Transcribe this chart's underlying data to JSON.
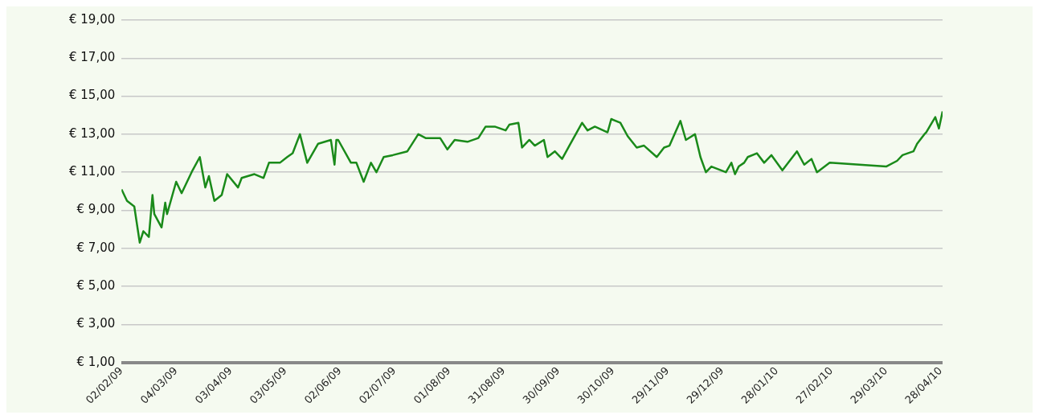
{
  "chart_data": {
    "type": "line",
    "x": [
      "2009-02-02",
      "2009-02-05",
      "2009-02-09",
      "2009-02-12",
      "2009-02-14",
      "2009-02-17",
      "2009-02-19",
      "2009-02-20",
      "2009-02-24",
      "2009-02-26",
      "2009-02-27",
      "2009-03-04",
      "2009-03-07",
      "2009-03-13",
      "2009-03-17",
      "2009-03-20",
      "2009-03-22",
      "2009-03-25",
      "2009-03-29",
      "2009-04-01",
      "2009-04-07",
      "2009-04-09",
      "2009-04-16",
      "2009-04-21",
      "2009-04-24",
      "2009-04-30",
      "2009-05-04",
      "2009-05-07",
      "2009-05-11",
      "2009-05-15",
      "2009-05-21",
      "2009-05-28",
      "2009-05-30",
      "2009-05-31",
      "2009-06-01",
      "2009-06-08",
      "2009-06-11",
      "2009-06-15",
      "2009-06-19",
      "2009-06-22",
      "2009-06-26",
      "2009-07-01",
      "2009-07-09",
      "2009-07-15",
      "2009-07-19",
      "2009-07-27",
      "2009-07-31",
      "2009-08-04",
      "2009-08-11",
      "2009-08-17",
      "2009-08-21",
      "2009-08-26",
      "2009-09-01",
      "2009-09-03",
      "2009-09-08",
      "2009-09-10",
      "2009-09-14",
      "2009-09-17",
      "2009-09-22",
      "2009-09-24",
      "2009-09-28",
      "2009-10-02",
      "2009-10-06",
      "2009-10-13",
      "2009-10-16",
      "2009-10-20",
      "2009-10-27",
      "2009-10-29",
      "2009-11-03",
      "2009-11-07",
      "2009-11-12",
      "2009-11-16",
      "2009-11-23",
      "2009-11-27",
      "2009-11-30",
      "2009-12-06",
      "2009-12-09",
      "2009-12-14",
      "2009-12-17",
      "2009-12-20",
      "2009-12-23",
      "2009-12-31",
      "2010-01-03",
      "2010-01-05",
      "2010-01-07",
      "2010-01-10",
      "2010-01-12",
      "2010-01-17",
      "2010-01-21",
      "2010-01-25",
      "2010-01-31",
      "2010-02-04",
      "2010-02-08",
      "2010-02-12",
      "2010-02-16",
      "2010-02-19",
      "2010-02-26",
      "2010-03-29",
      "2010-04-04",
      "2010-04-07",
      "2010-04-13",
      "2010-04-15",
      "2010-04-19",
      "2010-04-20",
      "2010-04-25",
      "2010-04-27",
      "2010-04-29"
    ],
    "series": [
      {
        "color": "#1a8a1a",
        "values": [
          10.1,
          9.5,
          9.2,
          7.3,
          7.9,
          7.6,
          9.8,
          8.8,
          8.1,
          9.4,
          8.8,
          10.5,
          9.9,
          11.1,
          11.8,
          10.2,
          10.8,
          9.5,
          9.8,
          10.9,
          10.2,
          10.7,
          10.9,
          10.7,
          11.5,
          11.5,
          11.8,
          12.0,
          13.0,
          11.5,
          12.5,
          12.7,
          11.4,
          12.7,
          12.7,
          11.5,
          11.5,
          10.5,
          11.5,
          11.0,
          11.8,
          11.9,
          12.1,
          13.0,
          12.8,
          12.8,
          12.2,
          12.7,
          12.6,
          12.8,
          13.4,
          13.4,
          13.2,
          13.5,
          13.6,
          12.3,
          12.7,
          12.4,
          12.7,
          11.8,
          12.1,
          11.7,
          12.4,
          13.6,
          13.2,
          13.4,
          13.1,
          13.8,
          13.6,
          12.9,
          12.3,
          12.4,
          11.8,
          12.3,
          12.4,
          13.7,
          12.7,
          13.0,
          11.8,
          11.0,
          11.3,
          11.0,
          11.5,
          10.9,
          11.3,
          11.5,
          11.8,
          12.0,
          11.5,
          11.9,
          11.1,
          11.6,
          12.1,
          11.4,
          11.7,
          11.0,
          11.5,
          11.3,
          11.6,
          11.9,
          12.1,
          12.5,
          13.0,
          13.1,
          13.9,
          13.3,
          14.2
        ]
      }
    ],
    "xlim": [
      "2009-02-02",
      "2010-04-29"
    ],
    "xticks": [
      {
        "value": "2009-02-02",
        "label": "02/02/09"
      },
      {
        "value": "2009-03-04",
        "label": "04/03/09"
      },
      {
        "value": "2009-04-03",
        "label": "03/04/09"
      },
      {
        "value": "2009-05-03",
        "label": "03/05/09"
      },
      {
        "value": "2009-06-02",
        "label": "02/06/09"
      },
      {
        "value": "2009-07-02",
        "label": "02/07/09"
      },
      {
        "value": "2009-08-01",
        "label": "01/08/09"
      },
      {
        "value": "2009-08-31",
        "label": "31/08/09"
      },
      {
        "value": "2009-09-30",
        "label": "30/09/09"
      },
      {
        "value": "2009-10-30",
        "label": "30/10/09"
      },
      {
        "value": "2009-11-29",
        "label": "29/11/09"
      },
      {
        "value": "2009-12-29",
        "label": "29/12/09"
      },
      {
        "value": "2010-01-28",
        "label": "28/01/10"
      },
      {
        "value": "2010-02-27",
        "label": "27/02/10"
      },
      {
        "value": "2010-03-29",
        "label": "29/03/10"
      },
      {
        "value": "2010-04-28",
        "label": "28/04/10"
      }
    ],
    "ylim": [
      1,
      19
    ],
    "yticks": [
      {
        "value": 1,
        "label": "€ 1,00"
      },
      {
        "value": 3,
        "label": "€ 3,00"
      },
      {
        "value": 5,
        "label": "€ 5,00"
      },
      {
        "value": 7,
        "label": "€ 7,00"
      },
      {
        "value": 9,
        "label": "€ 9,00"
      },
      {
        "value": 11,
        "label": "€ 11,00"
      },
      {
        "value": 13,
        "label": "€ 13,00"
      },
      {
        "value": 15,
        "label": "€ 15,00"
      },
      {
        "value": 17,
        "label": "€ 17,00"
      },
      {
        "value": 19,
        "label": "€ 19,00"
      }
    ],
    "grid": "y",
    "marker": "none",
    "line_style": "solid",
    "legend": false
  }
}
